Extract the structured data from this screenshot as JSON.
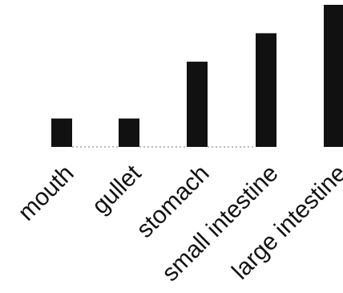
{
  "chart_data": {
    "type": "bar",
    "categories": [
      "mouth",
      "gullet",
      "stomach",
      "small intestine",
      "large intestine"
    ],
    "values": [
      1,
      1,
      3,
      4,
      5
    ],
    "title": "",
    "xlabel": "",
    "ylabel": "",
    "ylim": [
      0,
      5
    ],
    "grid": false,
    "legend": "none",
    "bar_color": "#111111"
  }
}
